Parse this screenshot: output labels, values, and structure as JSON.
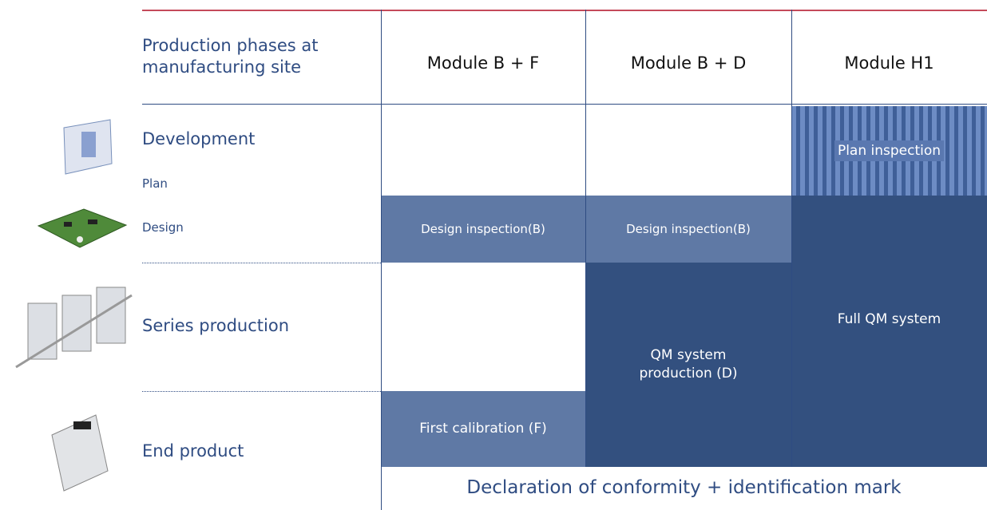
{
  "header": {
    "phases_title": "Production phases at manufacturing site",
    "columns": [
      "Module B + F",
      "Module B + D",
      "Module H1"
    ]
  },
  "phases": {
    "development": "Development",
    "plan": "Plan",
    "design": "Design",
    "series": "Series production",
    "end": "End product"
  },
  "cells": {
    "bf_design": "Design inspection(B)",
    "bf_calibration": "First calibration (F)",
    "bd_design": "Design inspection(B)",
    "bd_qm": "QM system production (D)",
    "h1_plan": "Plan inspection",
    "h1_qm": "Full QM system"
  },
  "footer": "Declaration of conformity + identification mark"
}
